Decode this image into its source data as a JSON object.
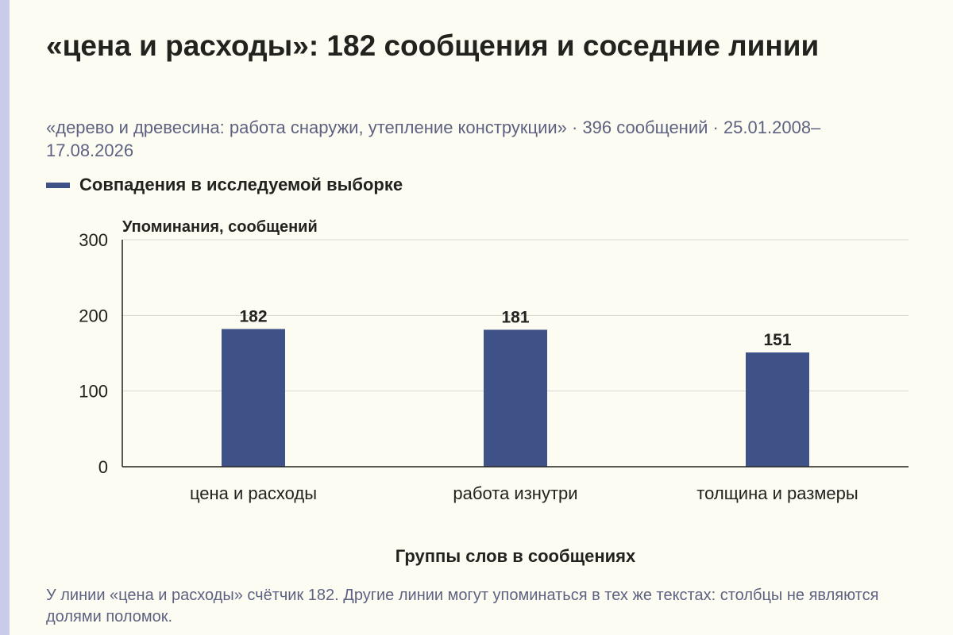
{
  "header": {
    "title": "«цена и расходы»: 182 сообщения и соседние линии",
    "subtitle": "«дерево и древесина: работа снаружи, утепление конструкции» · 396 сообщений · 25.01.2008–17.08.2026"
  },
  "legend": {
    "label": "Совпадения в исследуемой выборке"
  },
  "footnote": "У линии «цена и расходы» счётчик 182. Другие линии могут упоминаться в тех же текстах: столбцы не являются долями поломок.",
  "colors": {
    "bar": "#3f5288",
    "background": "#fdfcf2",
    "side_stripe": "#c8cce8"
  },
  "chart_data": {
    "type": "bar",
    "categories": [
      "цена и расходы",
      "работа изнутри",
      "толщина и размеры"
    ],
    "series": [
      {
        "name": "Совпадения в исследуемой выборке",
        "values": [
          182,
          181,
          151
        ]
      }
    ],
    "data_labels": [
      "182",
      "181",
      "151"
    ],
    "ylabel": "Упоминания, сообщений",
    "xlabel": "Группы слов в сообщениях",
    "ylim": [
      0,
      300
    ],
    "yticks": [
      0,
      100,
      200,
      300
    ],
    "grid": true,
    "legend_position": "top-left"
  }
}
